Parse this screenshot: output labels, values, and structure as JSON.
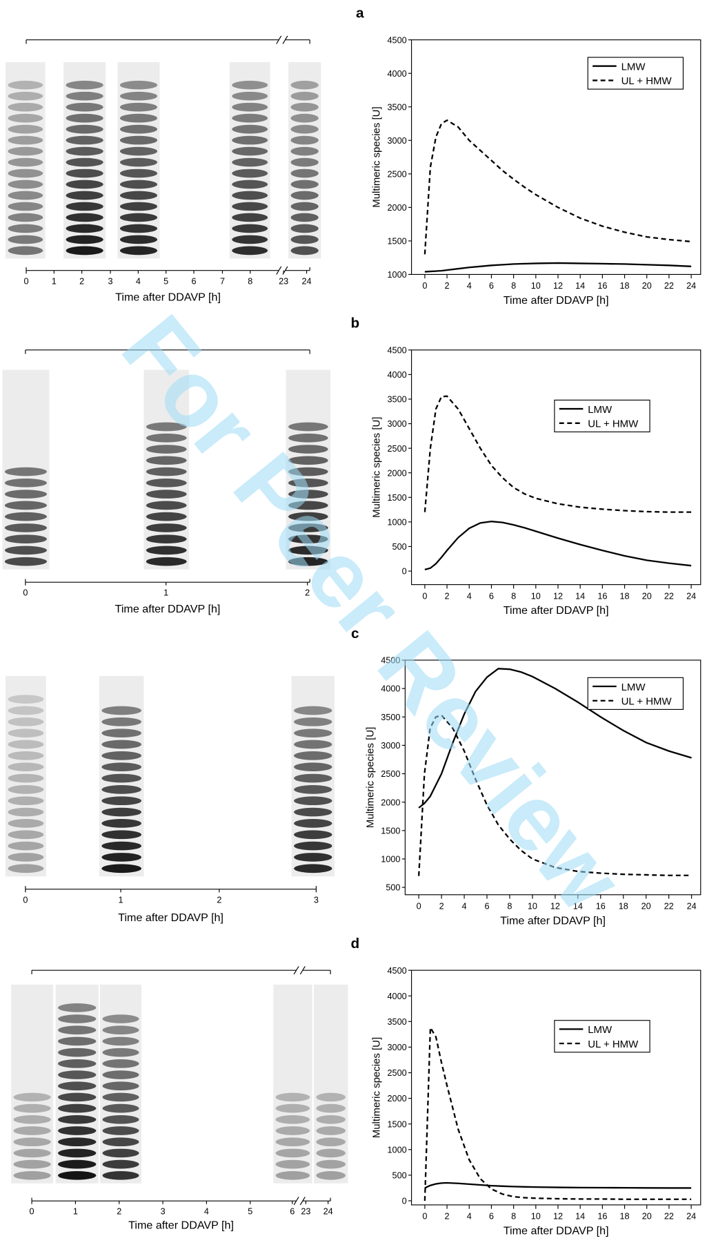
{
  "watermark": "For Peer Review",
  "chart_data": [
    {
      "type": "line",
      "panel_label": "a",
      "xlabel": "Time after DDAVP [h]",
      "ylabel": "Multimeric species [U]",
      "x": [
        0,
        0.5,
        1,
        1.5,
        2,
        3,
        4,
        5,
        6,
        7,
        8,
        9,
        10,
        12,
        14,
        16,
        18,
        20,
        22,
        24
      ],
      "series": [
        {
          "name": "LMW",
          "color": "#000000",
          "line_style": "solid",
          "values": [
            1040,
            1045,
            1050,
            1055,
            1065,
            1085,
            1105,
            1120,
            1135,
            1145,
            1155,
            1160,
            1165,
            1170,
            1165,
            1160,
            1155,
            1145,
            1135,
            1120
          ]
        },
        {
          "name": "UL + HMW",
          "color": "#000000",
          "line_style": "dashed",
          "values": [
            1300,
            2600,
            3050,
            3250,
            3300,
            3200,
            3000,
            2850,
            2700,
            2550,
            2420,
            2300,
            2190,
            2000,
            1840,
            1720,
            1630,
            1560,
            1520,
            1490
          ]
        }
      ],
      "xlim": [
        -1.2,
        24.85
      ],
      "ylim": [
        1000,
        4500
      ],
      "xticks": [
        0,
        2,
        4,
        6,
        8,
        10,
        12,
        14,
        16,
        18,
        20,
        22,
        24
      ],
      "yticks": [
        1000,
        1500,
        2000,
        2500,
        3000,
        3500,
        4000,
        4500
      ],
      "legend": "upper right"
    },
    {
      "type": "line",
      "panel_label": "b",
      "xlabel": "Time after DDAVP [h]",
      "ylabel": "Multimeric species [U]",
      "x": [
        0,
        0.5,
        1,
        1.5,
        2,
        3,
        4,
        5,
        6,
        7,
        8,
        9,
        10,
        12,
        14,
        16,
        18,
        20,
        22,
        24
      ],
      "series": [
        {
          "name": "LMW",
          "color": "#000000",
          "line_style": "solid",
          "values": [
            30,
            60,
            150,
            280,
            420,
            680,
            870,
            980,
            1010,
            990,
            940,
            880,
            810,
            670,
            540,
            420,
            310,
            220,
            160,
            110
          ]
        },
        {
          "name": "UL + HMW",
          "color": "#000000",
          "line_style": "dashed",
          "values": [
            1200,
            2500,
            3300,
            3550,
            3560,
            3300,
            2900,
            2500,
            2150,
            1900,
            1700,
            1570,
            1480,
            1370,
            1300,
            1260,
            1230,
            1210,
            1200,
            1200
          ]
        }
      ],
      "xlim": [
        -1.2,
        24.85
      ],
      "ylim": [
        -275,
        4500
      ],
      "xticks": [
        0,
        2,
        4,
        6,
        8,
        10,
        12,
        14,
        16,
        18,
        20,
        22,
        24
      ],
      "yticks": [
        0,
        500,
        1000,
        1500,
        2000,
        2500,
        3000,
        3500,
        4000,
        4500
      ],
      "legend": "center right"
    },
    {
      "type": "line",
      "panel_label": "c",
      "xlabel": "Time after DDAVP [h]",
      "ylabel": "Multimeric species [U]",
      "x": [
        0,
        0.5,
        1,
        1.5,
        2,
        3,
        4,
        5,
        6,
        7,
        8,
        9,
        10,
        12,
        14,
        16,
        18,
        20,
        22,
        24
      ],
      "series": [
        {
          "name": "LMW",
          "color": "#000000",
          "line_style": "solid",
          "values": [
            1900,
            1980,
            2100,
            2300,
            2500,
            3050,
            3550,
            3950,
            4200,
            4350,
            4340,
            4290,
            4210,
            4000,
            3760,
            3500,
            3260,
            3050,
            2900,
            2780
          ]
        },
        {
          "name": "UL + HMW",
          "color": "#000000",
          "line_style": "dashed",
          "values": [
            700,
            2500,
            3300,
            3500,
            3530,
            3300,
            2900,
            2400,
            1950,
            1600,
            1350,
            1150,
            1000,
            850,
            780,
            750,
            730,
            720,
            710,
            710
          ]
        }
      ],
      "xlim": [
        -1.2,
        24.8
      ],
      "ylim": [
        370,
        4500
      ],
      "xticks": [
        0,
        2,
        4,
        6,
        8,
        10,
        12,
        14,
        16,
        18,
        20,
        22,
        24
      ],
      "yticks": [
        500,
        1000,
        1500,
        2000,
        2500,
        3000,
        3500,
        4000,
        4500
      ],
      "legend": "upper right"
    },
    {
      "type": "line",
      "panel_label": "d",
      "xlabel": "Time after DDAVP [h]",
      "ylabel": "Multimeric species [U]",
      "x": [
        0,
        0.5,
        1,
        1.5,
        2,
        3,
        4,
        5,
        6,
        7,
        8,
        9,
        10,
        12,
        14,
        16,
        18,
        20,
        22,
        24
      ],
      "series": [
        {
          "name": "LMW",
          "color": "#000000",
          "line_style": "solid",
          "values": [
            250,
            300,
            330,
            345,
            350,
            340,
            325,
            310,
            295,
            285,
            278,
            272,
            268,
            262,
            258,
            256,
            254,
            252,
            250,
            250
          ]
        },
        {
          "name": "UL + HMW",
          "color": "#000000",
          "line_style": "dashed",
          "values": [
            0,
            3380,
            3200,
            2700,
            2250,
            1400,
            800,
            430,
            230,
            130,
            80,
            60,
            50,
            40,
            35,
            35,
            30,
            30,
            30,
            30
          ]
        }
      ],
      "xlim": [
        -1.2,
        24.85
      ],
      "ylim": [
        -80,
        4500
      ],
      "xticks": [
        0,
        2,
        4,
        6,
        8,
        10,
        12,
        14,
        16,
        18,
        20,
        22,
        24
      ],
      "yticks": [
        0,
        500,
        1000,
        1500,
        2000,
        2500,
        3000,
        3500,
        4000,
        4500
      ],
      "legend": "center right"
    }
  ],
  "gels": [
    {
      "xlabel": "Time after DDAVP [h]",
      "ticks": [
        0,
        1,
        2,
        3,
        4,
        5,
        6,
        7,
        8,
        23,
        24
      ]
    },
    {
      "xlabel": "Time after DDAVP [h]",
      "ticks": [
        0,
        1,
        2
      ]
    },
    {
      "xlabel": "Time after DDAVP [h]",
      "ticks": [
        0,
        1,
        2,
        3
      ]
    },
    {
      "xlabel": "Time after DDAVP [h]",
      "ticks": [
        0,
        1,
        2,
        3,
        4,
        5,
        6,
        23,
        24
      ]
    }
  ]
}
